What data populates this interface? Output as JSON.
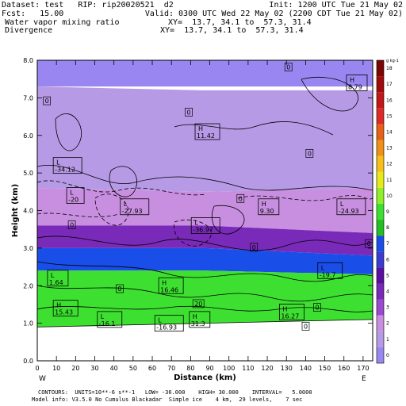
{
  "header": {
    "line1_left": "Dataset: test   RIP: rip20020521  d2",
    "line1_right": "Init: 1200 UTC Tue 21 May 02",
    "line2_left": "Fcst:   15.00",
    "line2_right": "Valid: 0300 UTC Wed 22 May 02 (2200 CDT Tue 21 May 02)",
    "line3_left": "Water vapor mixing ratio",
    "line3_right": "XY=  13.7, 34.1 to  57.3, 31.4",
    "line4_left": "Divergence",
    "line4_right": "XY=  13.7, 34.1 to  57.3, 31.4"
  },
  "footer": {
    "contours": "CONTOURS:  UNITS=10**-6 s**-1   LOW= -36.000    HIGH= 30.000    INTERVAL=   5.0000",
    "model_info": "Model info: V3.5.0 No Cumulus Blackadar  Simple ice    4 km,  29 levels,    7 sec"
  },
  "axis_ends": {
    "left": "W",
    "right": "E"
  },
  "chart_data": {
    "type": "heatmap",
    "xlabel": "Distance (km)",
    "ylabel": "Height (km)",
    "xlim": [
      0,
      175
    ],
    "ylim": [
      0,
      8
    ],
    "x_ticks": [
      0,
      10,
      20,
      30,
      40,
      50,
      60,
      70,
      80,
      90,
      100,
      110,
      120,
      130,
      140,
      150,
      160,
      170
    ],
    "y_ticks": [
      "0.0",
      "1.0",
      "2.0",
      "3.0",
      "4.0",
      "5.0",
      "6.0",
      "7.0",
      "8.0"
    ],
    "colorbar": {
      "unit": "g kg-1",
      "labels": [
        "0",
        "1",
        "2",
        "3",
        "4",
        "5",
        "6",
        "7",
        "8",
        "9",
        "10",
        "11",
        "12",
        "13",
        "14",
        "15",
        "16",
        "17",
        "18"
      ],
      "colors": [
        "#9a86f0",
        "#b79ae6",
        "#c88fe0",
        "#9b4ad0",
        "#7a2ab8",
        "#5a0fa0",
        "#3a3cd2",
        "#1a4ee8",
        "#22c022",
        "#3de030",
        "#8ef028",
        "#e6ea1a",
        "#f6c018",
        "#f09018",
        "#e86018",
        "#e02828",
        "#c41818",
        "#a00c0c",
        "#7a0606"
      ]
    },
    "moisture_layers": [
      {
        "name": "dry-top",
        "color": "#9a86f0",
        "top_km": [
          8.0,
          8.0,
          8.0
        ],
        "bottom_km": [
          7.3,
          7.3,
          7.3
        ]
      },
      {
        "name": "upper-purple",
        "color": "#b79ae6",
        "top_km": [
          7.3,
          7.2,
          7.2
        ],
        "bottom_km": [
          4.6,
          4.5,
          4.6
        ]
      },
      {
        "name": "mid-purple",
        "color": "#c88fe0",
        "top_km": [
          4.6,
          4.5,
          4.6
        ],
        "bottom_km": [
          3.6,
          3.6,
          3.4
        ]
      },
      {
        "name": "violet",
        "color": "#7a2ab8",
        "top_km": [
          3.6,
          3.6,
          3.4
        ],
        "bottom_km": [
          3.0,
          3.0,
          2.8
        ]
      },
      {
        "name": "blue",
        "color": "#1a4ee8",
        "top_km": [
          3.0,
          3.0,
          2.8
        ],
        "bottom_km": [
          2.4,
          2.4,
          2.3
        ]
      },
      {
        "name": "green",
        "color": "#3de030",
        "top_km": [
          2.4,
          2.4,
          2.3
        ],
        "bottom_km": [
          0.9,
          1.0,
          1.1
        ]
      }
    ],
    "centers": [
      {
        "type": "H",
        "value": "8.79",
        "x": 163,
        "y": 7.4
      },
      {
        "type": "H",
        "value": "11.42",
        "x": 84,
        "y": 6.1
      },
      {
        "type": "L",
        "value": "-34.12",
        "x": 10,
        "y": 5.2
      },
      {
        "type": "L",
        "value": "-20",
        "x": 17,
        "y": 4.4
      },
      {
        "type": "L",
        "value": "-27.93",
        "x": 45,
        "y": 4.1
      },
      {
        "type": "H",
        "value": "9.30",
        "x": 117,
        "y": 4.1
      },
      {
        "type": "L",
        "value": "-24.93",
        "x": 158,
        "y": 4.1
      },
      {
        "type": "L",
        "value": "-36.97",
        "x": 82,
        "y": 3.6
      },
      {
        "type": "L",
        "value": "-19.7",
        "x": 148,
        "y": 2.4
      },
      {
        "type": "L",
        "value": "1.64",
        "x": 7,
        "y": 2.2
      },
      {
        "type": "H",
        "value": "16.46",
        "x": 65,
        "y": 2.0
      },
      {
        "type": "H",
        "value": "15.43",
        "x": 10,
        "y": 1.4
      },
      {
        "type": "H",
        "value": "16.27",
        "x": 128,
        "y": 1.3
      },
      {
        "type": "L",
        "value": "-16.1",
        "x": 33,
        "y": 1.1
      },
      {
        "type": "L",
        "value": "-16.93",
        "x": 63,
        "y": 1.0
      },
      {
        "type": "H",
        "value": "31.3",
        "x": 81,
        "y": 1.1
      }
    ],
    "contour_labels": [
      {
        "value": "0",
        "x": 130,
        "y": 7.8
      },
      {
        "value": "0",
        "x": 4,
        "y": 6.9
      },
      {
        "value": "0",
        "x": 78,
        "y": 6.6
      },
      {
        "value": "0",
        "x": 141,
        "y": 5.5
      },
      {
        "value": "0",
        "x": 105,
        "y": 4.3
      },
      {
        "value": "0",
        "x": 17,
        "y": 3.6
      },
      {
        "value": "0",
        "x": 112,
        "y": 3.0
      },
      {
        "value": "0",
        "x": 172,
        "y": 3.1
      },
      {
        "value": "0",
        "x": 42,
        "y": 1.9
      },
      {
        "value": "0",
        "x": 145,
        "y": 1.4
      },
      {
        "value": "20",
        "x": 82,
        "y": 1.5
      },
      {
        "value": "0",
        "x": 139,
        "y": 0.9
      }
    ],
    "terrain_km": [
      0.9,
      0.95,
      1.0,
      1.05,
      1.1
    ]
  }
}
